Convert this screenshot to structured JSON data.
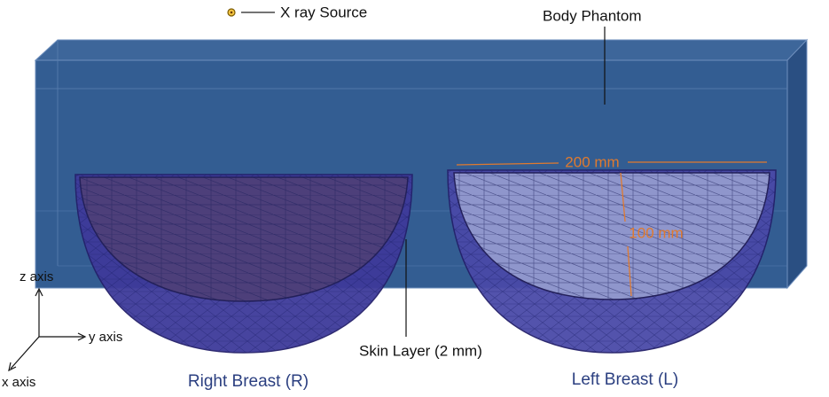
{
  "labels": {
    "xray_source": "X ray Source",
    "body_phantom": "Body Phantom",
    "width": "200 mm",
    "depth": "100 mm",
    "skin_layer": "Skin Layer (2 mm)",
    "right_breast": "Right Breast (R)",
    "left_breast": "Left Breast (L)"
  },
  "axes": {
    "z": "z axis",
    "y": "y axis",
    "x": "x axis"
  }
}
